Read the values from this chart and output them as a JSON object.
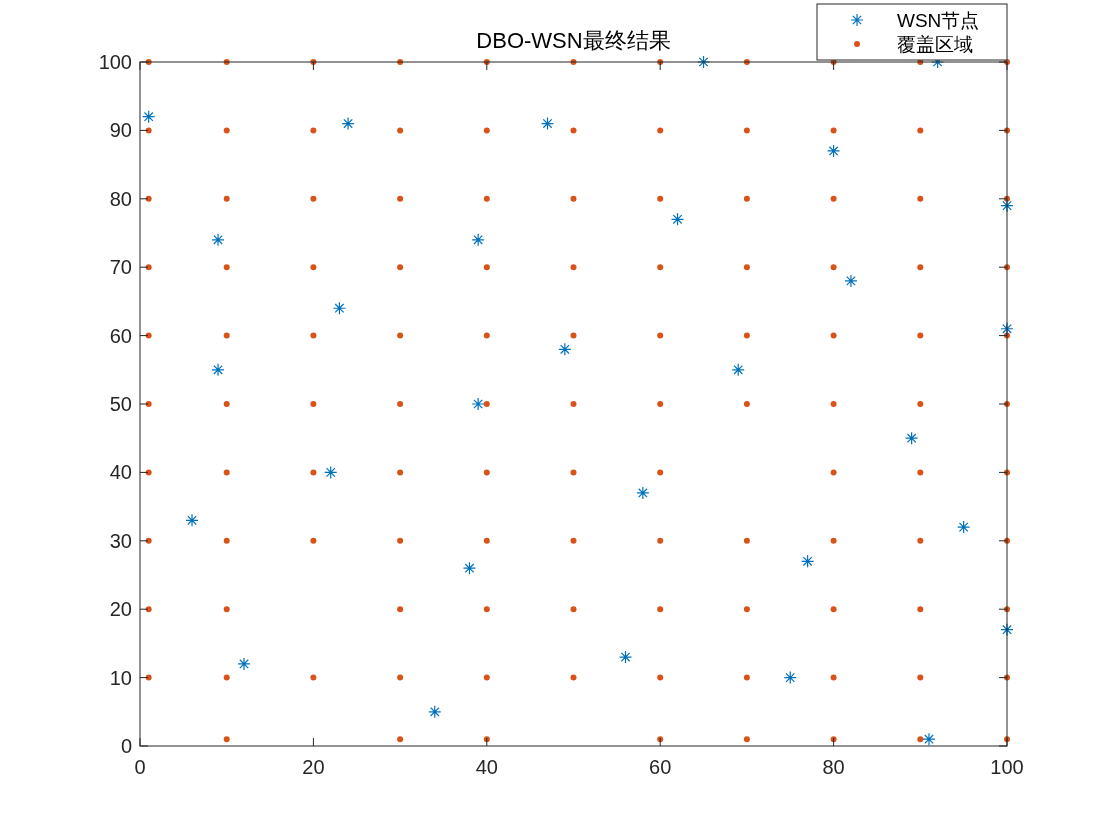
{
  "chart_data": {
    "type": "scatter",
    "title": "DBO-WSN最终结果",
    "xlim": [
      0,
      100
    ],
    "ylim": [
      0,
      100
    ],
    "xticks": [
      0,
      20,
      40,
      60,
      80,
      100
    ],
    "yticks": [
      0,
      10,
      20,
      30,
      40,
      50,
      60,
      70,
      80,
      90,
      100
    ],
    "grid": false,
    "legend": "top right",
    "series": [
      {
        "name": "WSN节点",
        "color": "#0072bd",
        "marker": "cross",
        "x": [
          1,
          24,
          47,
          65,
          92,
          80,
          9,
          39,
          62,
          100,
          23,
          82,
          100,
          9,
          49,
          69,
          39,
          22,
          58,
          89,
          6,
          95,
          38,
          77,
          100,
          12,
          56,
          75,
          34,
          91
        ],
        "values": [
          92,
          91,
          91,
          100,
          100,
          87,
          74,
          74,
          77,
          79,
          64,
          68,
          61,
          55,
          58,
          55,
          50,
          40,
          37,
          45,
          33,
          32,
          26,
          27,
          17,
          12,
          13,
          10,
          5,
          1
        ]
      },
      {
        "name": "覆盖区域",
        "color": "#d95319",
        "marker": "circle",
        "x": [
          10,
          30,
          40,
          60,
          70,
          80,
          90,
          100,
          1,
          10,
          20,
          30,
          40,
          50,
          60,
          70,
          80,
          90,
          100,
          1,
          10,
          30,
          40,
          50,
          60,
          70,
          80,
          90,
          100,
          1,
          10,
          20,
          30,
          40,
          50,
          60,
          70,
          80,
          90,
          100,
          1,
          10,
          20,
          30,
          40,
          50,
          60,
          80,
          90,
          100,
          1,
          10,
          20,
          30,
          40,
          50,
          60,
          70,
          80,
          90,
          100,
          1,
          10,
          20,
          30,
          40,
          50,
          60,
          70,
          80,
          90,
          100,
          1,
          10,
          20,
          30,
          40,
          50,
          60,
          70,
          80,
          90,
          100,
          1,
          10,
          20,
          30,
          40,
          50,
          60,
          70,
          80,
          90,
          100,
          1,
          10,
          20,
          30,
          40,
          50,
          60,
          70,
          80,
          90,
          100,
          1,
          10,
          20,
          30,
          40,
          50,
          60,
          70,
          80,
          90,
          100
        ],
        "values": [
          1,
          1,
          1,
          1,
          1,
          1,
          1,
          1,
          10,
          10,
          10,
          10,
          10,
          10,
          10,
          10,
          10,
          10,
          10,
          20,
          20,
          20,
          20,
          20,
          20,
          20,
          20,
          20,
          20,
          30,
          30,
          30,
          30,
          30,
          30,
          30,
          30,
          30,
          30,
          30,
          40,
          40,
          40,
          40,
          40,
          40,
          40,
          40,
          40,
          40,
          50,
          50,
          50,
          50,
          50,
          50,
          50,
          50,
          50,
          50,
          50,
          60,
          60,
          60,
          60,
          60,
          60,
          60,
          60,
          60,
          60,
          60,
          70,
          70,
          70,
          70,
          70,
          70,
          70,
          70,
          70,
          70,
          70,
          80,
          80,
          80,
          80,
          80,
          80,
          80,
          80,
          80,
          80,
          80,
          90,
          90,
          90,
          90,
          90,
          90,
          90,
          90,
          90,
          90,
          90,
          100,
          100,
          100,
          100,
          100,
          100,
          100,
          100,
          100,
          100,
          100
        ]
      }
    ]
  }
}
